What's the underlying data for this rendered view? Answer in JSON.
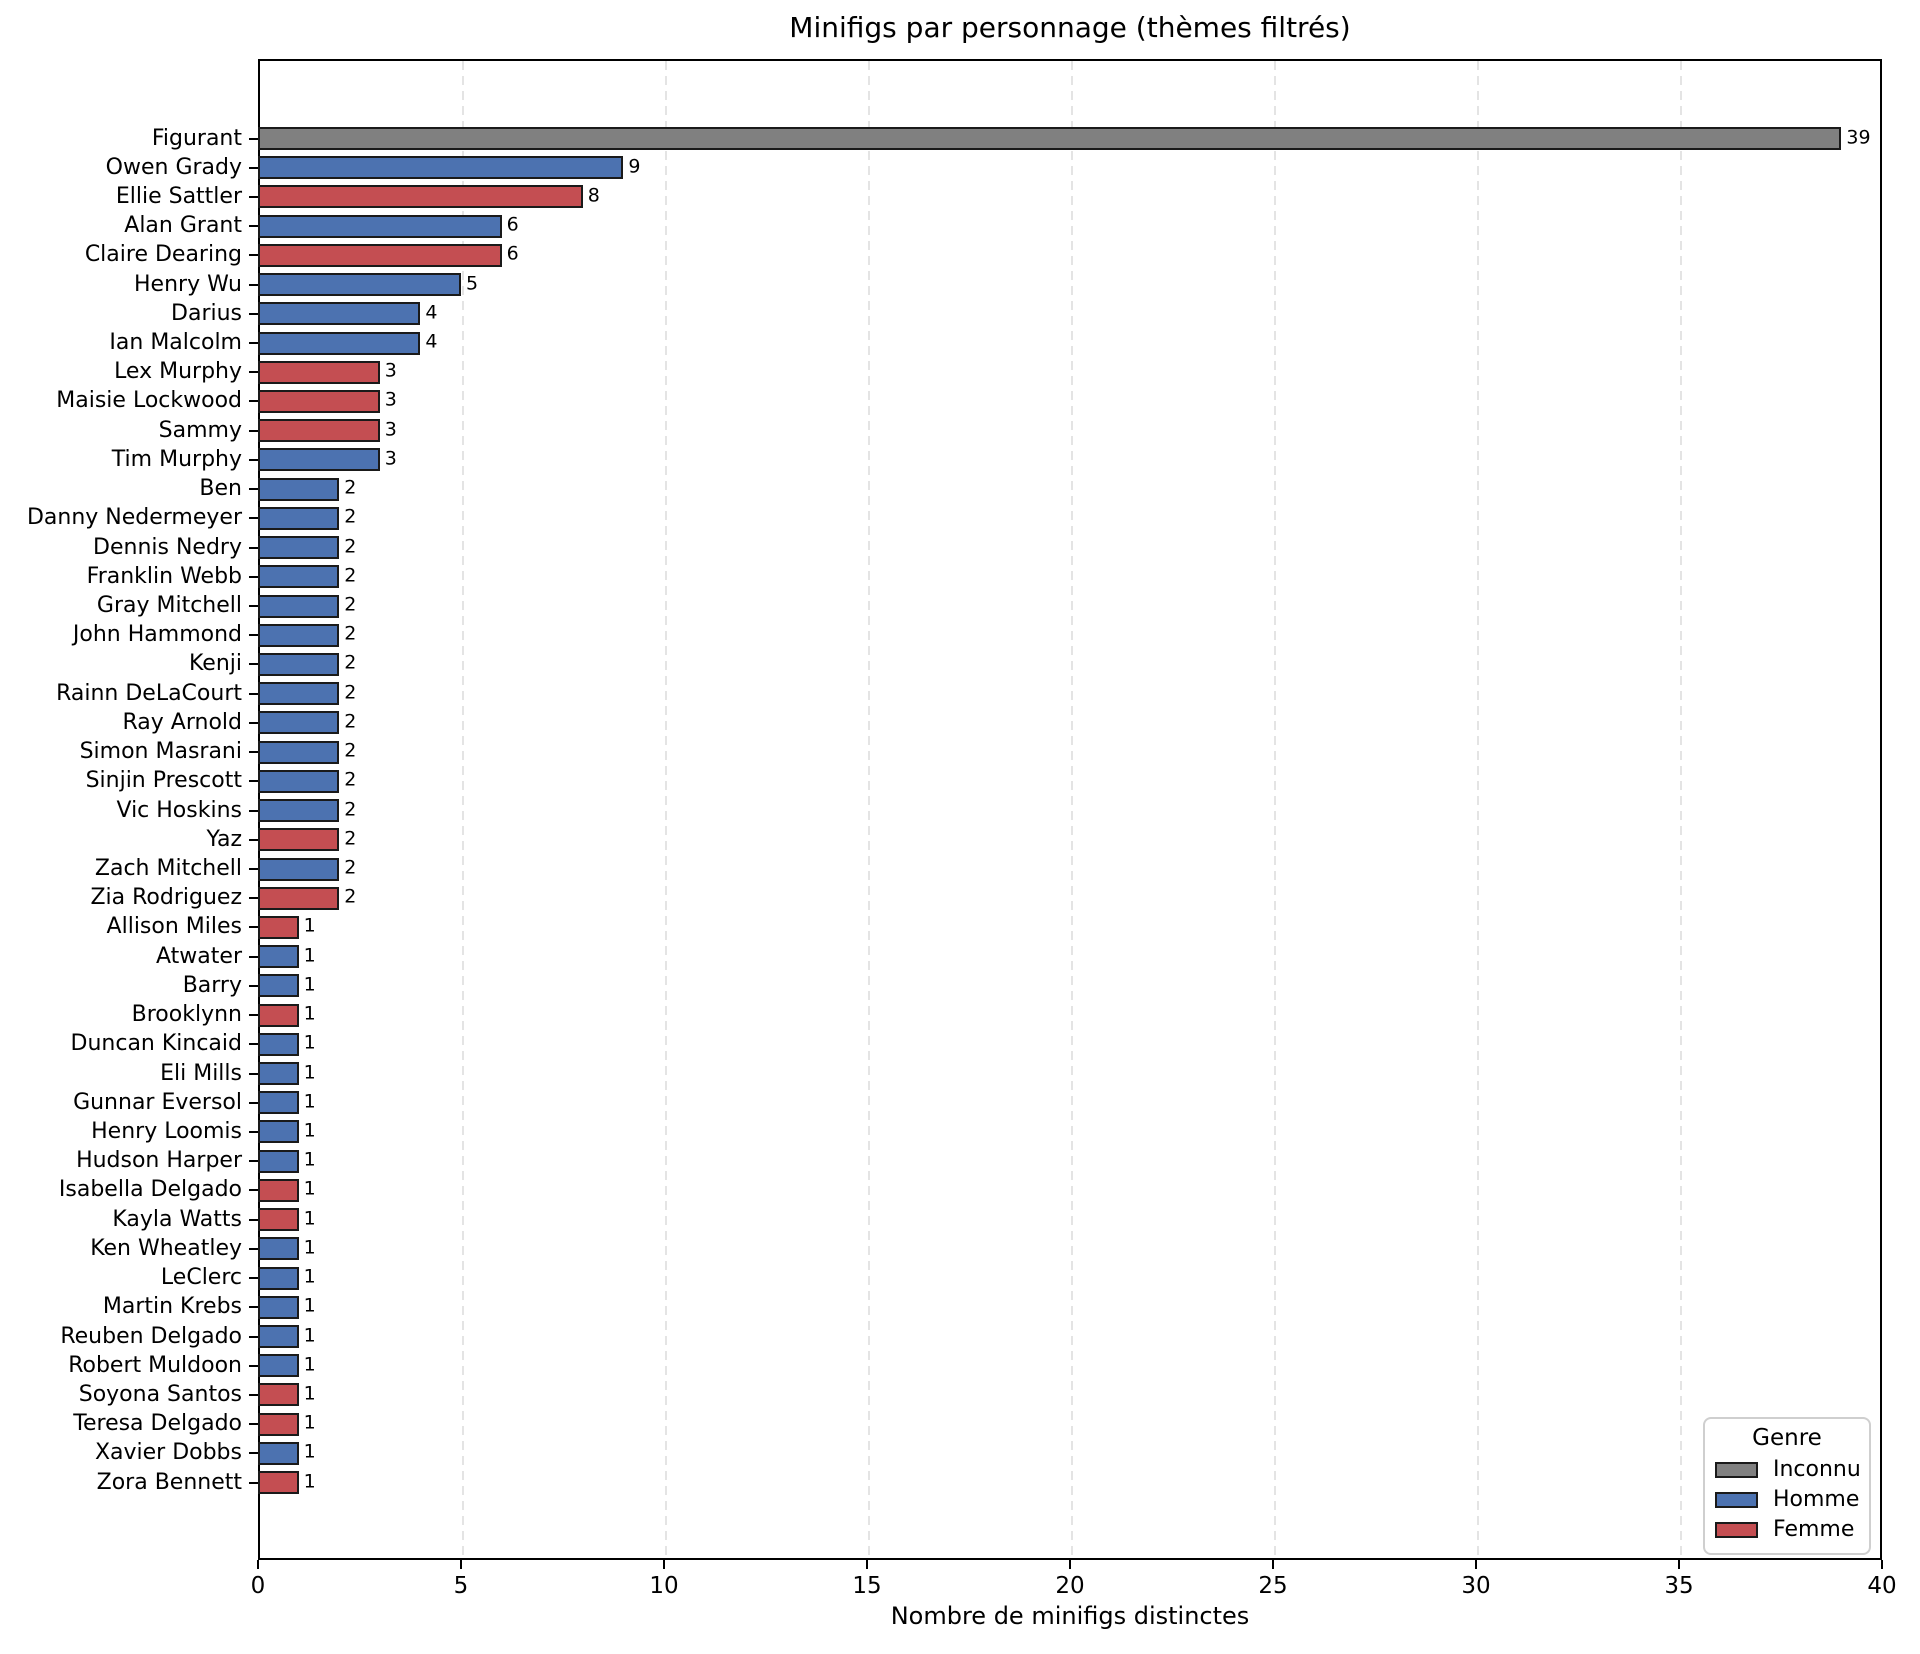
{
  "title": "Minifigs par personnage (thèmes filtrés)",
  "colors": {
    "background": "#ffffff",
    "bar_edge": "#1a1a1a",
    "grid": "#e4e4e4",
    "text": "#000000",
    "inconnu": "#808080",
    "homme": "#4C72B0",
    "femme": "#C44E52"
  },
  "chart_data": {
    "type": "bar",
    "orientation": "horizontal",
    "title": "Minifigs par personnage (thèmes filtrés)",
    "xlabel": "Nombre de minifigs distinctes",
    "ylabel": "",
    "xlim": [
      0,
      40
    ],
    "xticks": [
      0,
      5,
      10,
      15,
      20,
      25,
      30,
      35,
      40
    ],
    "grid": "vertical-dashed",
    "legend": {
      "title": "Genre",
      "position": "lower-right",
      "entries": [
        {
          "label": "Inconnu",
          "color": "#808080"
        },
        {
          "label": "Homme",
          "color": "#4C72B0"
        },
        {
          "label": "Femme",
          "color": "#C44E52"
        }
      ]
    },
    "bars": [
      {
        "label": "Figurant",
        "value": 39,
        "genre": "Inconnu"
      },
      {
        "label": "Owen Grady",
        "value": 9,
        "genre": "Homme"
      },
      {
        "label": "Ellie Sattler",
        "value": 8,
        "genre": "Femme"
      },
      {
        "label": "Alan Grant",
        "value": 6,
        "genre": "Homme"
      },
      {
        "label": "Claire Dearing",
        "value": 6,
        "genre": "Femme"
      },
      {
        "label": "Henry Wu",
        "value": 5,
        "genre": "Homme"
      },
      {
        "label": "Darius",
        "value": 4,
        "genre": "Homme"
      },
      {
        "label": "Ian Malcolm",
        "value": 4,
        "genre": "Homme"
      },
      {
        "label": "Lex Murphy",
        "value": 3,
        "genre": "Femme"
      },
      {
        "label": "Maisie Lockwood",
        "value": 3,
        "genre": "Femme"
      },
      {
        "label": "Sammy",
        "value": 3,
        "genre": "Femme"
      },
      {
        "label": "Tim Murphy",
        "value": 3,
        "genre": "Homme"
      },
      {
        "label": "Ben",
        "value": 2,
        "genre": "Homme"
      },
      {
        "label": "Danny Nedermeyer",
        "value": 2,
        "genre": "Homme"
      },
      {
        "label": "Dennis Nedry",
        "value": 2,
        "genre": "Homme"
      },
      {
        "label": "Franklin Webb",
        "value": 2,
        "genre": "Homme"
      },
      {
        "label": "Gray Mitchell",
        "value": 2,
        "genre": "Homme"
      },
      {
        "label": "John Hammond",
        "value": 2,
        "genre": "Homme"
      },
      {
        "label": "Kenji",
        "value": 2,
        "genre": "Homme"
      },
      {
        "label": "Rainn DeLaCourt",
        "value": 2,
        "genre": "Homme"
      },
      {
        "label": "Ray Arnold",
        "value": 2,
        "genre": "Homme"
      },
      {
        "label": "Simon Masrani",
        "value": 2,
        "genre": "Homme"
      },
      {
        "label": "Sinjin Prescott",
        "value": 2,
        "genre": "Homme"
      },
      {
        "label": "Vic Hoskins",
        "value": 2,
        "genre": "Homme"
      },
      {
        "label": "Yaz",
        "value": 2,
        "genre": "Femme"
      },
      {
        "label": "Zach Mitchell",
        "value": 2,
        "genre": "Homme"
      },
      {
        "label": "Zia Rodriguez",
        "value": 2,
        "genre": "Femme"
      },
      {
        "label": "Allison Miles",
        "value": 1,
        "genre": "Femme"
      },
      {
        "label": "Atwater",
        "value": 1,
        "genre": "Homme"
      },
      {
        "label": "Barry",
        "value": 1,
        "genre": "Homme"
      },
      {
        "label": "Brooklynn",
        "value": 1,
        "genre": "Femme"
      },
      {
        "label": "Duncan Kincaid",
        "value": 1,
        "genre": "Homme"
      },
      {
        "label": "Eli Mills",
        "value": 1,
        "genre": "Homme"
      },
      {
        "label": "Gunnar Eversol",
        "value": 1,
        "genre": "Homme"
      },
      {
        "label": "Henry Loomis",
        "value": 1,
        "genre": "Homme"
      },
      {
        "label": "Hudson Harper",
        "value": 1,
        "genre": "Homme"
      },
      {
        "label": "Isabella Delgado",
        "value": 1,
        "genre": "Femme"
      },
      {
        "label": "Kayla Watts",
        "value": 1,
        "genre": "Femme"
      },
      {
        "label": "Ken Wheatley",
        "value": 1,
        "genre": "Homme"
      },
      {
        "label": "LeClerc",
        "value": 1,
        "genre": "Homme"
      },
      {
        "label": "Martin Krebs",
        "value": 1,
        "genre": "Homme"
      },
      {
        "label": "Reuben Delgado",
        "value": 1,
        "genre": "Homme"
      },
      {
        "label": "Robert Muldoon",
        "value": 1,
        "genre": "Homme"
      },
      {
        "label": "Soyona Santos",
        "value": 1,
        "genre": "Femme"
      },
      {
        "label": "Teresa Delgado",
        "value": 1,
        "genre": "Femme"
      },
      {
        "label": "Xavier Dobbs",
        "value": 1,
        "genre": "Homme"
      },
      {
        "label": "Zora Bennett",
        "value": 1,
        "genre": "Femme"
      }
    ]
  }
}
